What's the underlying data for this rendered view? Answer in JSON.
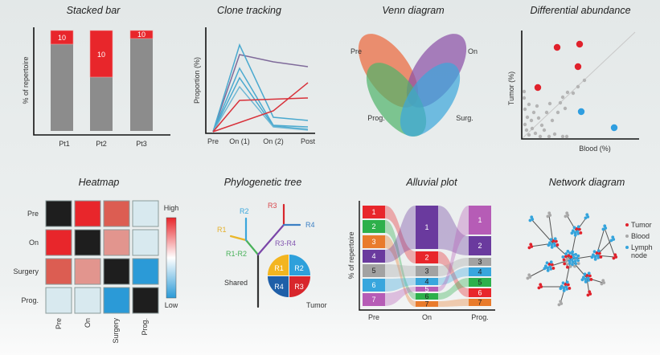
{
  "stacked_bar": {
    "title": "Stacked bar",
    "ylabel": "% of repertoire",
    "categories": [
      "Pt1",
      "Pt2",
      "Pt3"
    ],
    "segment_labels": [
      "10",
      "10",
      "10"
    ]
  },
  "clone_tracking": {
    "title": "Clone tracking",
    "ylabel": "Proportion (%)",
    "xticks": [
      "Pre",
      "On (1)",
      "On (2)",
      "Post"
    ]
  },
  "venn": {
    "title": "Venn diagram",
    "sets": [
      "Pre",
      "On",
      "Prog.",
      "Surg."
    ]
  },
  "differential": {
    "title": "Differential abundance",
    "xlabel": "Blood (%)",
    "ylabel": "Tumor (%)"
  },
  "heatmap": {
    "title": "Heatmap",
    "rows": [
      "Pre",
      "On",
      "Surgery",
      "Prog."
    ],
    "cols": [
      "Pre",
      "On",
      "Surgery",
      "Prog."
    ],
    "scale_high": "High",
    "scale_low": "Low",
    "colors": [
      [
        "#1e1e1e",
        "#e8262b",
        "#dc5d52",
        "#d8e9ef"
      ],
      [
        "#e8262b",
        "#1e1e1e",
        "#e2958e",
        "#d8e9ef"
      ],
      [
        "#dc5d52",
        "#e2958e",
        "#1e1e1e",
        "#2b9ad7"
      ],
      [
        "#d8e9ef",
        "#d8e9ef",
        "#2b9ad7",
        "#1e1e1e"
      ]
    ]
  },
  "phylo": {
    "title": "Phylogenetic tree",
    "labels": {
      "r1": "R1",
      "r2": "R2",
      "r3": "R3",
      "r4": "R4",
      "r1r2": "R1-R2",
      "r3r4": "R3-R4",
      "shared": "Shared",
      "tumor": "Tumor"
    }
  },
  "alluvial": {
    "title": "Alluvial plot",
    "ylabel": "% of repertoire",
    "columns": [
      "Pre",
      "On",
      "Prog."
    ],
    "box_labels": [
      "1",
      "2",
      "3",
      "4",
      "5",
      "6",
      "7"
    ],
    "clone_colors": [
      "#e8262b",
      "#2db04b",
      "#e97b2c",
      "#6a3a9e",
      "#a2a2a2",
      "#38a6dd",
      "#b65cb6"
    ]
  },
  "network": {
    "title": "Network diagram",
    "legend": [
      {
        "label": "Tumor",
        "color": "#e0222c"
      },
      {
        "label": "Blood",
        "color": "#a8a8a8"
      },
      {
        "label": "Lymph",
        "label2": "node",
        "color": "#35a4dc"
      }
    ]
  }
}
